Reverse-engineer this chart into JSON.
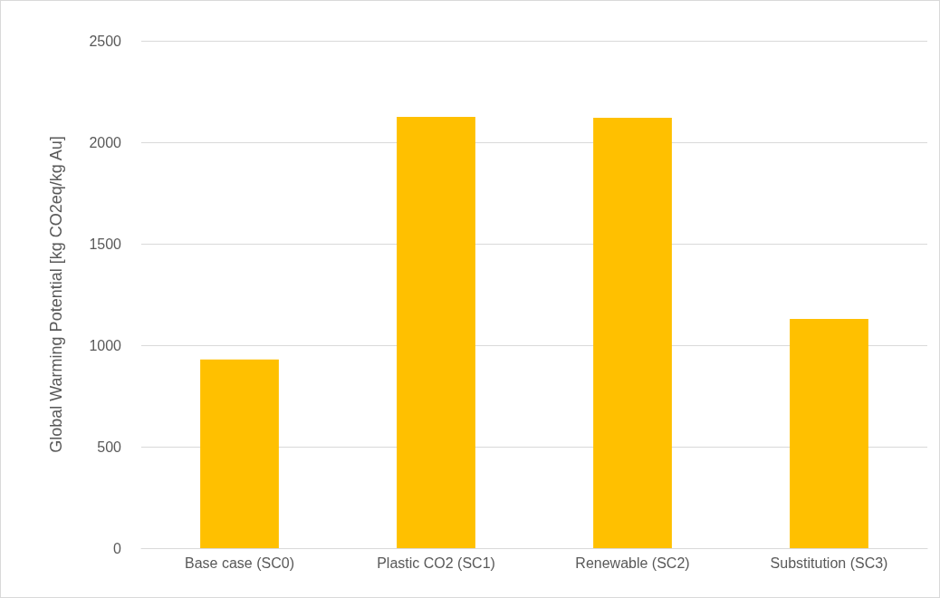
{
  "chart_data": {
    "type": "bar",
    "ylabel": "Global Warming Potential [kg CO2eq/kg Au]",
    "categories": [
      "Base case (SC0)",
      "Plastic CO2 (SC1)",
      "Renewable (SC2)",
      "Substitution (SC3)"
    ],
    "values": [
      930,
      2125,
      2120,
      1130
    ],
    "color": "#ffc000",
    "ylim": [
      0,
      2500
    ],
    "yticks": [
      0,
      500,
      1000,
      1500,
      2000,
      2500
    ],
    "grid": "y"
  }
}
